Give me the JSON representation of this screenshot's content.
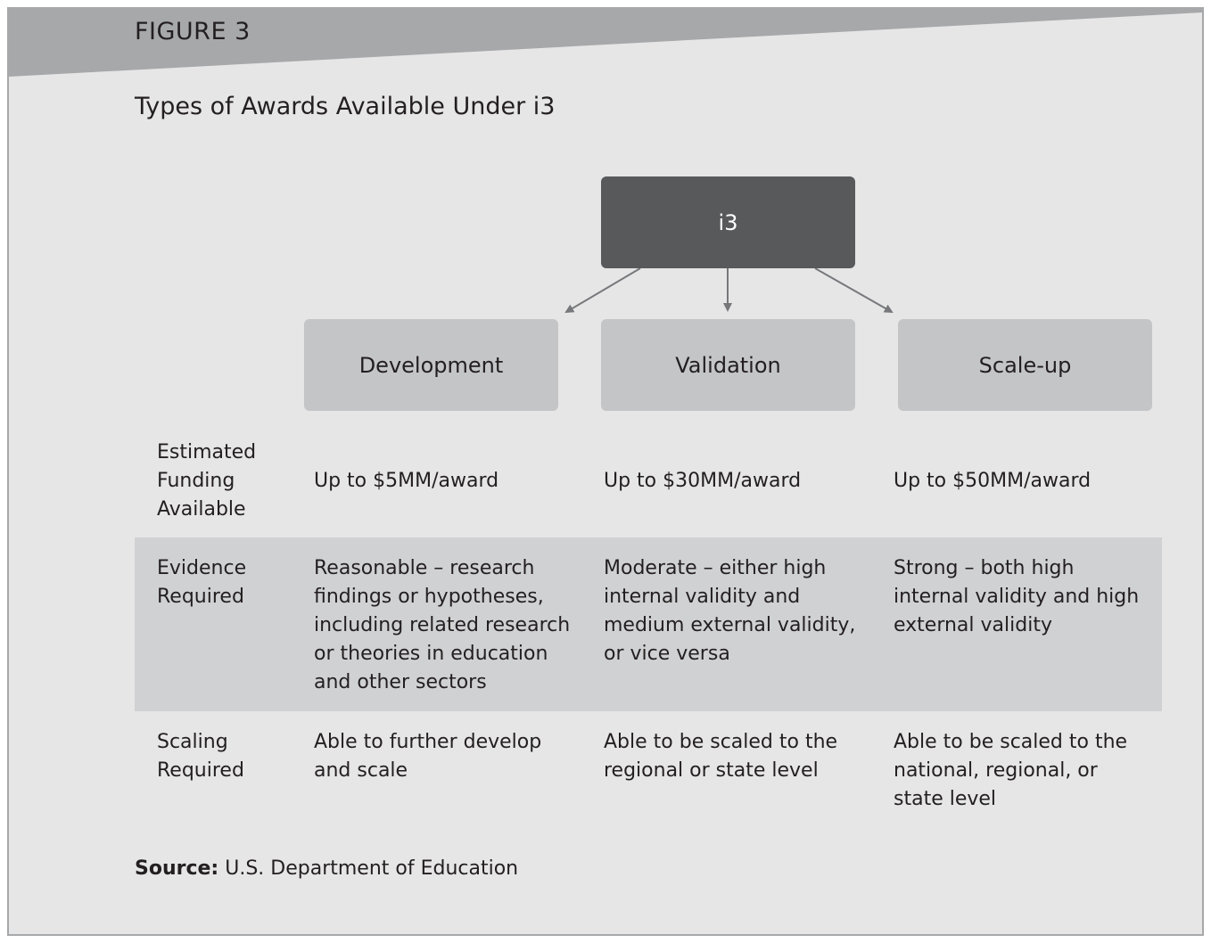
{
  "figure": {
    "label": "FIGURE 3",
    "title": "Types of Awards Available Under i3"
  },
  "diagram": {
    "root": "i3",
    "children": [
      "Development",
      "Validation",
      "Scale-up"
    ]
  },
  "rows": [
    {
      "label_lines": [
        "Estimated",
        "Funding",
        "Available"
      ],
      "values": [
        [
          "Up to $5MM/award"
        ],
        [
          "Up to $30MM/award"
        ],
        [
          "Up to $50MM/award"
        ]
      ]
    },
    {
      "label_lines": [
        "Evidence",
        "Required"
      ],
      "values": [
        [
          "Reasonable – research",
          "findings or hypotheses,",
          "including related research",
          "or theories in education",
          "and other sectors"
        ],
        [
          "Moderate – either high",
          "internal validity and",
          "medium external validity,",
          "or vice versa"
        ],
        [
          "Strong – both high",
          "internal validity and high",
          "external validity"
        ]
      ]
    },
    {
      "label_lines": [
        "Scaling",
        "Required"
      ],
      "values": [
        [
          "Able to further develop",
          "and scale"
        ],
        [
          "Able to be scaled to the",
          "regional or state level"
        ],
        [
          "Able to be scaled to the",
          "national, regional, or",
          "state level"
        ]
      ]
    }
  ],
  "source": {
    "prefix": "Source:",
    "text": " U.S. Department of Education"
  },
  "colors": {
    "background": "#e6e6e7",
    "header_band": "#a7a8aa",
    "root_box": "#58595b",
    "child_box": "#c4c5c7",
    "highlight_row": "#d0d1d3",
    "arrow": "#77787b"
  }
}
